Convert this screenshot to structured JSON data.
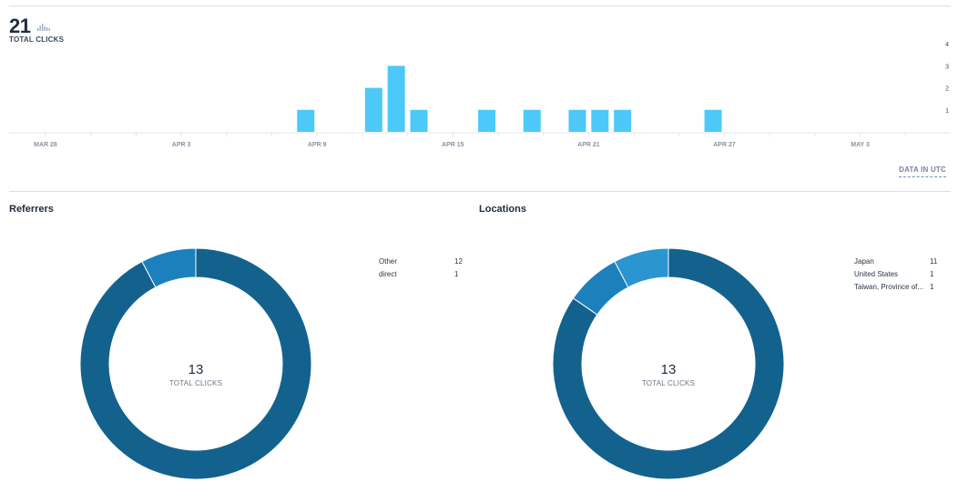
{
  "summary": {
    "total_clicks": "21",
    "total_clicks_label": "TOTAL CLICKS",
    "chart_icon": "mini-bar-chart-icon"
  },
  "timeline": {
    "data_note": "DATA IN UTC"
  },
  "chart_data": {
    "type": "bar",
    "title": "",
    "xlabel": "",
    "ylabel": "",
    "x_tick_labels": [
      "MAR 28",
      "APR 3",
      "APR 9",
      "APR 15",
      "APR 21",
      "APR 27",
      "MAY 3"
    ],
    "categories": [
      "Apr 8",
      "Apr 11",
      "Apr 12",
      "Apr 13",
      "Apr 16",
      "Apr 18",
      "Apr 20",
      "Apr 21",
      "Apr 22",
      "Apr 26"
    ],
    "values": [
      1,
      2,
      3,
      1,
      1,
      1,
      1,
      1,
      1,
      1
    ],
    "y_ticks": [
      1,
      2,
      3,
      4
    ],
    "ylim": [
      0,
      4
    ],
    "bar_color": "#4cc9f8",
    "grid": false
  },
  "referrers": {
    "title": "Referrers",
    "total": "13",
    "total_label": "TOTAL CLICKS",
    "items": [
      {
        "name": "Other",
        "value": "12"
      },
      {
        "name": "direct",
        "value": "1"
      }
    ],
    "slices": [
      12,
      1
    ],
    "colors": [
      "#13628e",
      "#1c80bd"
    ]
  },
  "locations": {
    "title": "Locations",
    "total": "13",
    "total_label": "TOTAL CLICKS",
    "items": [
      {
        "name": "Japan",
        "value": "11"
      },
      {
        "name": "United States",
        "value": "1"
      },
      {
        "name": "Taiwan, Province of...",
        "value": "1"
      }
    ],
    "slices": [
      11,
      1,
      1
    ],
    "colors": [
      "#13628e",
      "#1c80bd",
      "#2a95cf"
    ]
  }
}
